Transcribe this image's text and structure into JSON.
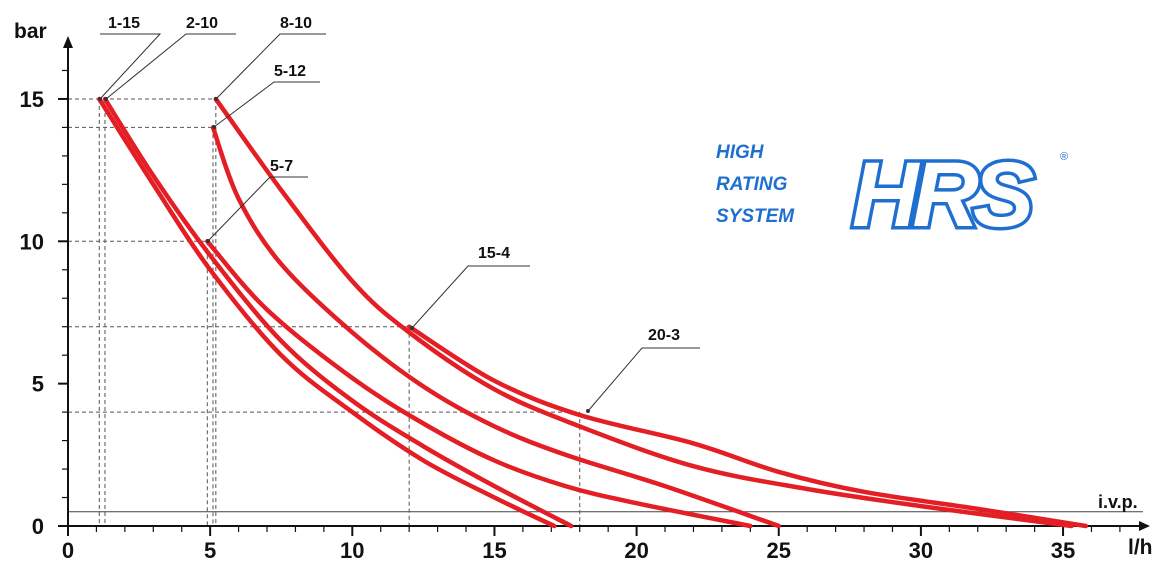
{
  "chart_data": {
    "type": "line",
    "xlabel": "l/h",
    "ylabel": "bar",
    "xlim": [
      0,
      36
    ],
    "ylim": [
      0,
      16
    ],
    "x_ticks": [
      0,
      5,
      10,
      15,
      20,
      25,
      30,
      35
    ],
    "y_ticks": [
      0,
      5,
      10,
      15
    ],
    "grid": false,
    "series_color": "#e31e24",
    "series": [
      {
        "name": "1-15",
        "points": [
          [
            1.1,
            15
          ],
          [
            3,
            12
          ],
          [
            5,
            9
          ],
          [
            7.5,
            6
          ],
          [
            10,
            4
          ],
          [
            12.5,
            2.3
          ],
          [
            15,
            1
          ],
          [
            17.1,
            0
          ]
        ]
      },
      {
        "name": "2-10",
        "points": [
          [
            1.3,
            15
          ],
          [
            3,
            12.3
          ],
          [
            5,
            9.5
          ],
          [
            7.5,
            6.5
          ],
          [
            10,
            4.4
          ],
          [
            12.5,
            2.8
          ],
          [
            15,
            1.4
          ],
          [
            17.7,
            0
          ]
        ]
      },
      {
        "name": "5-7",
        "points": [
          [
            4.9,
            10
          ],
          [
            7,
            7.6
          ],
          [
            10,
            5.2
          ],
          [
            12.5,
            3.6
          ],
          [
            15,
            2.3
          ],
          [
            17.5,
            1.4
          ],
          [
            20,
            0.8
          ],
          [
            24,
            0
          ]
        ]
      },
      {
        "name": "5-12",
        "points": [
          [
            5.1,
            14
          ],
          [
            6,
            11.5
          ],
          [
            7.5,
            9.2
          ],
          [
            10,
            6.8
          ],
          [
            12.5,
            4.9
          ],
          [
            15,
            3.5
          ],
          [
            17.5,
            2.5
          ],
          [
            21,
            1.4
          ],
          [
            25,
            0
          ]
        ]
      },
      {
        "name": "8-10",
        "points": [
          [
            5.2,
            15
          ],
          [
            7.5,
            11.8
          ],
          [
            10,
            8.6
          ],
          [
            12,
            6.8
          ],
          [
            15,
            4.8
          ],
          [
            18,
            3.5
          ],
          [
            22,
            2.1
          ],
          [
            26,
            1.3
          ],
          [
            30,
            0.7
          ],
          [
            35.3,
            0
          ]
        ]
      },
      {
        "name": "15-4",
        "points": [
          [
            12,
            7
          ],
          [
            15,
            5.1
          ],
          [
            18,
            3.9
          ],
          [
            22,
            2.9
          ],
          [
            25,
            1.9
          ],
          [
            28,
            1.2
          ],
          [
            32,
            0.6
          ],
          [
            35.8,
            0
          ]
        ]
      },
      {
        "name": "20-3",
        "points": []
      }
    ],
    "reference_lines": {
      "ivp": {
        "label": "i.v.p.",
        "y": 0.5
      },
      "guides": [
        {
          "x": 1.1,
          "y": 15
        },
        {
          "x": 1.3,
          "y": 15
        },
        {
          "x": 5.1,
          "y": 14
        },
        {
          "x": 5.2,
          "y": 15
        },
        {
          "x": 4.9,
          "y": 10
        },
        {
          "x": 12,
          "y": 7
        },
        {
          "x": 18,
          "y": 4
        }
      ]
    },
    "annotations": [
      "1-15",
      "2-10",
      "8-10",
      "5-12",
      "5-7",
      "15-4",
      "20-3"
    ]
  },
  "branding": {
    "tagline": [
      "HIGH",
      "RATING",
      "SYSTEM"
    ],
    "logo": "HRS",
    "registered": "®",
    "color": "#1f6fd0"
  }
}
